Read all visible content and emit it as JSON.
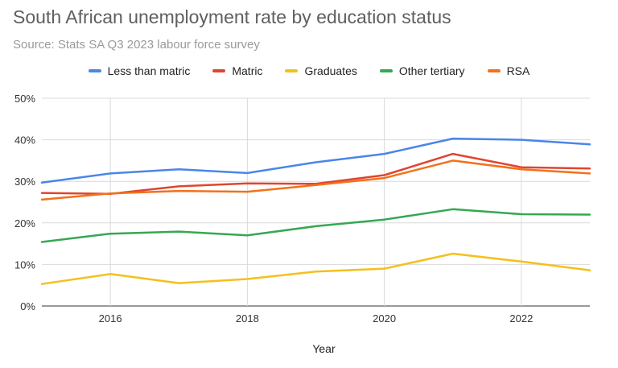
{
  "chart_data": {
    "type": "line",
    "title": "South African unemployment rate by education status",
    "subtitle": "Source: Stats SA Q3 2023 labour force survey",
    "xlabel": "Year",
    "ylabel": "",
    "x": [
      2015,
      2016,
      2017,
      2018,
      2019,
      2020,
      2021,
      2022,
      2023
    ],
    "xticks": [
      2016,
      2018,
      2020,
      2022
    ],
    "xlim": [
      2015,
      2023
    ],
    "yticks": [
      0,
      10,
      20,
      30,
      40,
      50
    ],
    "ytick_labels": [
      "0%",
      "10%",
      "20%",
      "30%",
      "40%",
      "50%"
    ],
    "ylim": [
      0,
      50
    ],
    "grid": true,
    "legend_position": "top",
    "series": [
      {
        "name": "Less than matric",
        "color": "#4a86e8",
        "values": [
          29.7,
          31.9,
          32.9,
          32.0,
          34.6,
          36.6,
          40.3,
          40.0,
          38.9
        ]
      },
      {
        "name": "Matric",
        "color": "#e0452f",
        "values": [
          27.2,
          27.0,
          28.8,
          29.5,
          29.4,
          31.5,
          36.6,
          33.4,
          33.1
        ]
      },
      {
        "name": "Graduates",
        "color": "#f4c01c",
        "values": [
          5.3,
          7.7,
          5.5,
          6.5,
          8.3,
          9.0,
          12.6,
          10.7,
          8.6
        ]
      },
      {
        "name": "Other tertiary",
        "color": "#35a853",
        "values": [
          15.4,
          17.4,
          17.9,
          17.0,
          19.2,
          20.8,
          23.3,
          22.1,
          22.0
        ]
      },
      {
        "name": "RSA",
        "color": "#f2711c",
        "values": [
          25.6,
          27.1,
          27.7,
          27.5,
          29.1,
          30.8,
          35.0,
          32.9,
          31.9
        ]
      }
    ]
  }
}
